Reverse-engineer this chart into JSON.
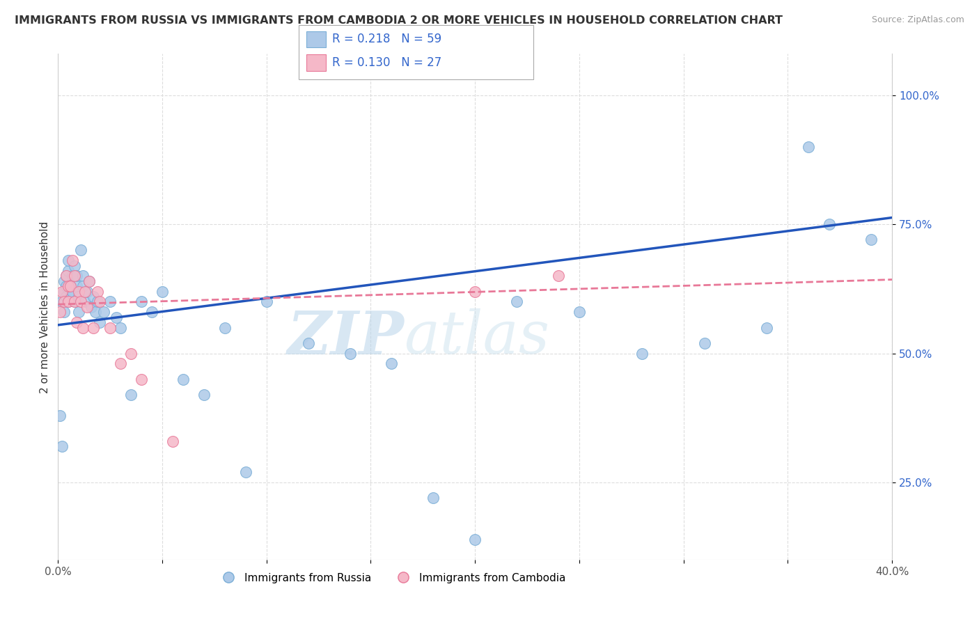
{
  "title": "IMMIGRANTS FROM RUSSIA VS IMMIGRANTS FROM CAMBODIA 2 OR MORE VEHICLES IN HOUSEHOLD CORRELATION CHART",
  "source": "Source: ZipAtlas.com",
  "ylabel": "2 or more Vehicles in Household",
  "xlim": [
    0.0,
    0.4
  ],
  "ylim": [
    0.1,
    1.08
  ],
  "ytick_positions": [
    0.25,
    0.5,
    0.75,
    1.0
  ],
  "ytick_labels": [
    "25.0%",
    "50.0%",
    "75.0%",
    "100.0%"
  ],
  "russia_color": "#adc9e8",
  "cambodia_color": "#f5b8c8",
  "russia_edge": "#7aaed6",
  "cambodia_edge": "#e87898",
  "line_russia_color": "#2255bb",
  "line_cambodia_color": "#e87898",
  "legend_r_russia": "R = 0.218",
  "legend_n_russia": "N = 59",
  "legend_r_cambodia": "R = 0.130",
  "legend_n_cambodia": "N = 27",
  "legend_label_russia": "Immigrants from Russia",
  "legend_label_cambodia": "Immigrants from Cambodia",
  "watermark_zip": "ZIP",
  "watermark_atlas": "atlas",
  "background_color": "#ffffff",
  "grid_color": "#dddddd",
  "reg_russia_m": 0.52,
  "reg_russia_b": 0.555,
  "reg_cambodia_m": 0.12,
  "reg_cambodia_b": 0.595,
  "russia_x": [
    0.001,
    0.002,
    0.002,
    0.003,
    0.003,
    0.003,
    0.004,
    0.004,
    0.004,
    0.005,
    0.005,
    0.005,
    0.006,
    0.006,
    0.007,
    0.007,
    0.008,
    0.008,
    0.009,
    0.009,
    0.01,
    0.01,
    0.011,
    0.012,
    0.012,
    0.013,
    0.014,
    0.015,
    0.016,
    0.017,
    0.018,
    0.019,
    0.02,
    0.022,
    0.025,
    0.028,
    0.03,
    0.035,
    0.04,
    0.045,
    0.05,
    0.06,
    0.07,
    0.08,
    0.09,
    0.1,
    0.12,
    0.14,
    0.16,
    0.18,
    0.2,
    0.22,
    0.25,
    0.28,
    0.31,
    0.34,
    0.36,
    0.37,
    0.39
  ],
  "russia_y": [
    0.38,
    0.32,
    0.6,
    0.62,
    0.58,
    0.64,
    0.61,
    0.65,
    0.63,
    0.6,
    0.66,
    0.68,
    0.63,
    0.61,
    0.65,
    0.62,
    0.6,
    0.67,
    0.63,
    0.65,
    0.61,
    0.58,
    0.7,
    0.65,
    0.63,
    0.6,
    0.62,
    0.64,
    0.59,
    0.61,
    0.58,
    0.6,
    0.56,
    0.58,
    0.6,
    0.57,
    0.55,
    0.42,
    0.6,
    0.58,
    0.62,
    0.45,
    0.42,
    0.55,
    0.27,
    0.6,
    0.52,
    0.5,
    0.48,
    0.22,
    0.14,
    0.6,
    0.58,
    0.5,
    0.52,
    0.55,
    0.9,
    0.75,
    0.72
  ],
  "cambodia_x": [
    0.001,
    0.002,
    0.003,
    0.004,
    0.005,
    0.005,
    0.006,
    0.007,
    0.008,
    0.008,
    0.009,
    0.01,
    0.011,
    0.012,
    0.013,
    0.014,
    0.015,
    0.017,
    0.019,
    0.02,
    0.025,
    0.03,
    0.035,
    0.04,
    0.055,
    0.2,
    0.24
  ],
  "cambodia_y": [
    0.58,
    0.62,
    0.6,
    0.65,
    0.6,
    0.63,
    0.63,
    0.68,
    0.65,
    0.6,
    0.56,
    0.62,
    0.6,
    0.55,
    0.62,
    0.59,
    0.64,
    0.55,
    0.62,
    0.6,
    0.55,
    0.48,
    0.5,
    0.45,
    0.33,
    0.62,
    0.65
  ]
}
